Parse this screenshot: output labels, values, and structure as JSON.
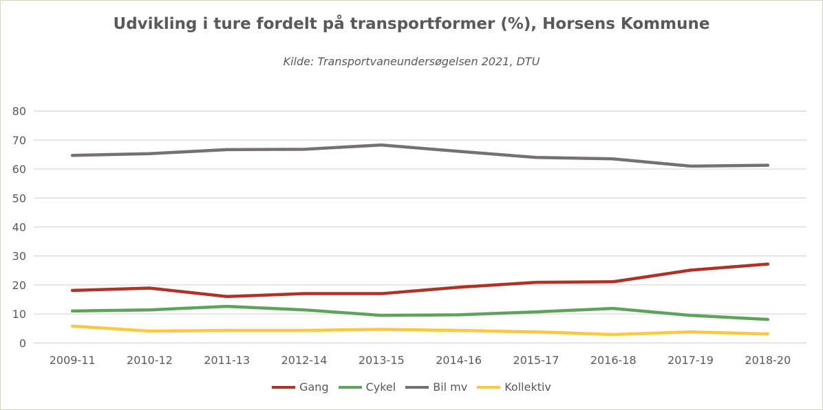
{
  "chart_data": {
    "type": "line",
    "title": "Udvikling i ture fordelt på transportformer (%), Horsens Kommune",
    "subtitle": "Kilde: Transportvaneundersøgelsen 2021, DTU",
    "categories": [
      "2009-11",
      "2010-12",
      "2011-13",
      "2012-14",
      "2013-15",
      "2014-16",
      "2015-17",
      "2016-18",
      "2017-19",
      "2018-20"
    ],
    "ylim": [
      0,
      80
    ],
    "yticks": [
      0,
      10,
      20,
      30,
      40,
      50,
      60,
      70,
      80
    ],
    "grid": true,
    "legend_position": "bottom",
    "series": [
      {
        "name": "Gang",
        "color": "#b23127",
        "values": [
          18.1,
          18.9,
          16.0,
          17.0,
          17.0,
          19.2,
          20.9,
          21.1,
          25.1,
          27.2
        ]
      },
      {
        "name": "Cykel",
        "color": "#5ea35a",
        "values": [
          11.0,
          11.4,
          12.6,
          11.4,
          9.5,
          9.7,
          10.7,
          11.9,
          9.5,
          8.1
        ]
      },
      {
        "name": "Bil mv",
        "color": "#767171",
        "values": [
          64.7,
          65.3,
          66.7,
          66.8,
          68.3,
          66.1,
          64.0,
          63.5,
          61.0,
          61.3
        ]
      },
      {
        "name": "Kollektiv",
        "color": "#ffc83d",
        "values": [
          5.8,
          4.1,
          4.3,
          4.3,
          4.7,
          4.3,
          3.8,
          2.9,
          3.8,
          3.1
        ]
      }
    ]
  }
}
